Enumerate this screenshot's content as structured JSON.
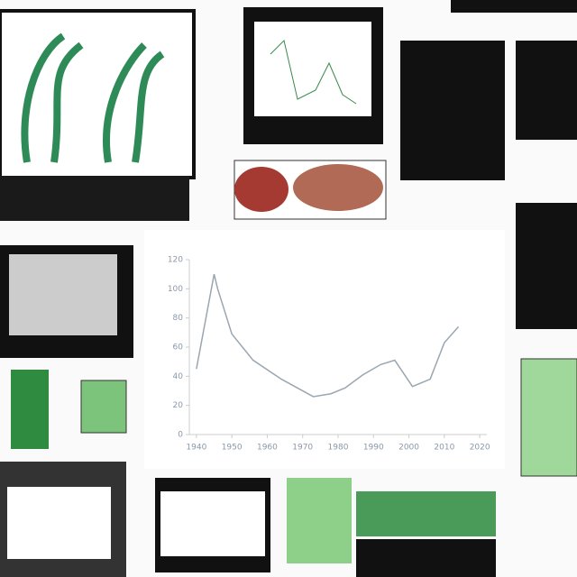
{
  "chart_data": {
    "type": "line",
    "color": "#9aa6b0",
    "x": [
      1940,
      1945,
      1946,
      1950,
      1956,
      1964,
      1973,
      1978,
      1982,
      1987,
      1992,
      1996,
      2001,
      2006,
      2010,
      2014
    ],
    "values": [
      45,
      110,
      100,
      69,
      51,
      38,
      26,
      28,
      32,
      41,
      48,
      51,
      33,
      38,
      63,
      74
    ],
    "xlim": [
      1938,
      2022
    ],
    "ylim": [
      0,
      120
    ],
    "xticks": [
      1940,
      1950,
      1960,
      1970,
      1980,
      1990,
      2000,
      2010,
      2020
    ],
    "yticks": [
      0,
      20,
      40,
      60,
      80,
      100,
      120
    ]
  }
}
